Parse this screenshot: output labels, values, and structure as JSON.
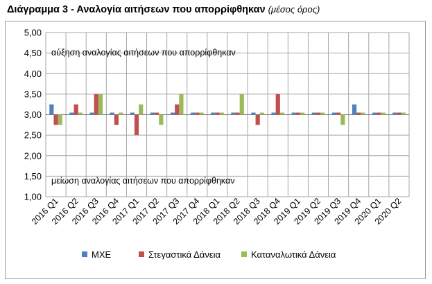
{
  "title": {
    "main": "Διάγραμμα 3 - Αναλογία αιτήσεων που απορρίφθηκαν",
    "sub": "(μέσος όρος)"
  },
  "colors": {
    "mxe": "#4f81bd",
    "stegastika": "#c0504d",
    "katanalotika": "#9bbb59",
    "grid": "#a6a6a6"
  },
  "chart_data": {
    "type": "bar",
    "baseline": 3.0,
    "ylim": [
      1.0,
      5.0
    ],
    "yticks": [
      "1,00",
      "1,50",
      "2,00",
      "2,50",
      "3,00",
      "3,50",
      "4,00",
      "4,50",
      "5,00"
    ],
    "grid": "horizontal and vertical",
    "legend_position": "bottom",
    "categories": [
      "2016 Q1",
      "2016 Q2",
      "2016 Q3",
      "2016 Q4",
      "2017 Q1",
      "2017 Q2",
      "2017 Q3",
      "2017 Q4",
      "2018 Q1",
      "2018 Q2",
      "2018 Q3",
      "2018 Q4",
      "2019 Q1",
      "2019 Q2",
      "2019 Q3",
      "2019 Q4",
      "2020 Q1",
      "2020 Q2"
    ],
    "series": [
      {
        "name": "ΜΧΕ",
        "color_key": "mxe",
        "values": [
          3.25,
          3.05,
          3.05,
          3.05,
          3.05,
          3.05,
          3.05,
          3.05,
          3.05,
          3.05,
          3.05,
          3.05,
          3.05,
          3.05,
          3.05,
          3.25,
          3.05,
          3.05
        ]
      },
      {
        "name": "Στεγαστικά Δάνεια",
        "color_key": "stegastika",
        "values": [
          2.75,
          3.25,
          3.5,
          2.75,
          2.5,
          3.05,
          3.25,
          3.05,
          3.05,
          3.05,
          2.75,
          3.5,
          3.05,
          3.05,
          3.05,
          3.05,
          3.05,
          3.05
        ]
      },
      {
        "name": "Καταναλωτικά Δάνεια",
        "color_key": "katanalotika",
        "values": [
          2.75,
          3.05,
          3.5,
          3.05,
          3.25,
          2.75,
          3.5,
          3.05,
          3.05,
          3.5,
          3.05,
          3.05,
          3.05,
          3.05,
          2.75,
          3.05,
          3.05,
          3.05
        ]
      }
    ],
    "annotations": {
      "top": "αύξηση αναλογίας αιτήσεων που απορρίφθηκαν",
      "bottom": "μείωση αναλογίας αιτήσεων που απορρίφθηκαν"
    }
  }
}
